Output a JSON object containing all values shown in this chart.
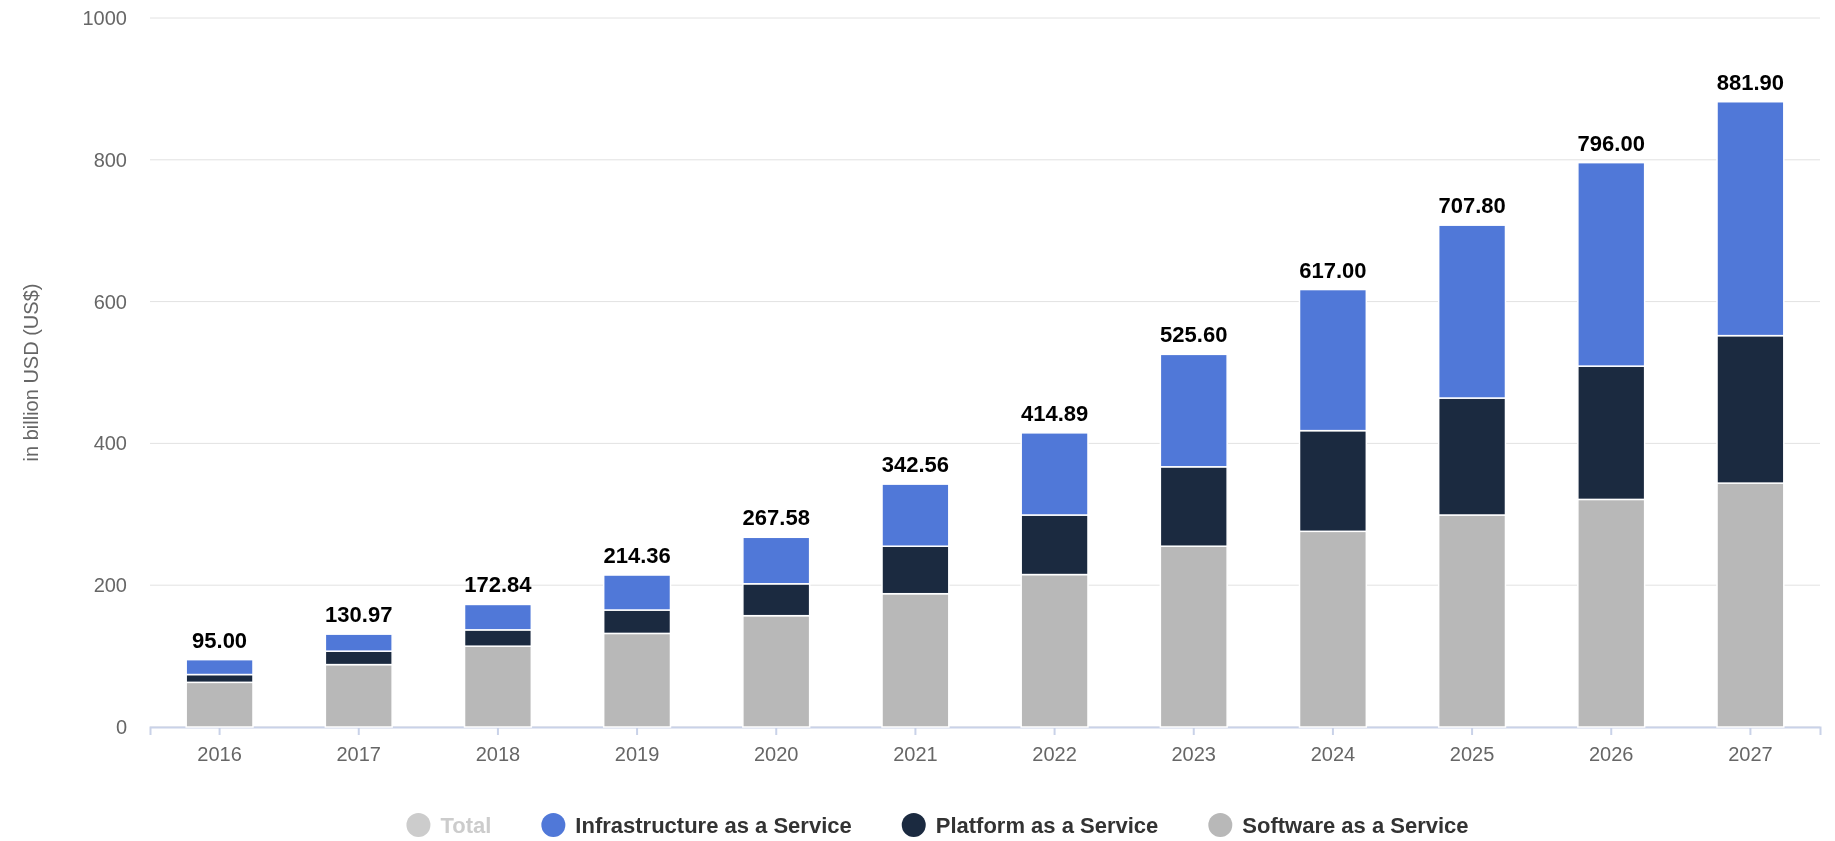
{
  "chart_data": {
    "type": "bar",
    "stacked": true,
    "ylabel": "in billion USD (US$)",
    "categories": [
      "2016",
      "2017",
      "2018",
      "2019",
      "2020",
      "2021",
      "2022",
      "2023",
      "2024",
      "2025",
      "2026",
      "2027"
    ],
    "series": [
      {
        "name": "Software as a Service",
        "color": "#b8b8b8",
        "values": [
          63,
          88,
          114,
          132,
          157,
          188,
          215,
          255,
          276,
          299,
          321,
          344
        ]
      },
      {
        "name": "Platform as a Service",
        "color": "#1b2a40",
        "values": [
          11,
          19,
          23,
          33,
          45,
          67,
          84,
          112,
          142,
          165,
          188,
          208
        ]
      },
      {
        "name": "Infrastructure as a Service",
        "color": "#5078d8",
        "values": [
          21,
          23.97,
          35.84,
          49.36,
          65.58,
          87.56,
          115.89,
          158.6,
          199,
          243.8,
          287,
          329.9
        ]
      }
    ],
    "totals": [
      "95.00",
      "130.97",
      "172.84",
      "214.36",
      "267.58",
      "342.56",
      "414.89",
      "525.60",
      "617.00",
      "707.80",
      "796.00",
      "881.90"
    ],
    "annotations": [
      "Total"
    ],
    "ylim": [
      0,
      1000
    ],
    "yticks": [
      0,
      200,
      400,
      600,
      800,
      1000
    ],
    "grid": "y",
    "legend": "bottom"
  }
}
